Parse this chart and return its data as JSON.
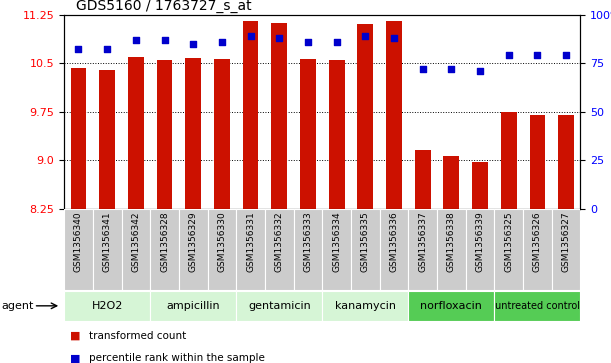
{
  "title": "GDS5160 / 1763727_s_at",
  "samples": [
    "GSM1356340",
    "GSM1356341",
    "GSM1356342",
    "GSM1356328",
    "GSM1356329",
    "GSM1356330",
    "GSM1356331",
    "GSM1356332",
    "GSM1356333",
    "GSM1356334",
    "GSM1356335",
    "GSM1356336",
    "GSM1356337",
    "GSM1356338",
    "GSM1356339",
    "GSM1356325",
    "GSM1356326",
    "GSM1356327"
  ],
  "transformed_count": [
    10.42,
    10.4,
    10.6,
    10.55,
    10.58,
    10.56,
    11.15,
    11.12,
    10.57,
    10.55,
    11.1,
    11.15,
    9.16,
    9.07,
    8.97,
    9.75,
    9.7,
    9.7
  ],
  "percentile_rank": [
    82,
    82,
    87,
    87,
    85,
    86,
    89,
    88,
    86,
    86,
    89,
    88,
    72,
    72,
    71,
    79,
    79,
    79
  ],
  "agents": [
    {
      "label": "H2O2",
      "start": 0,
      "end": 3,
      "color": "#d6f5d6"
    },
    {
      "label": "ampicillin",
      "start": 3,
      "end": 6,
      "color": "#d6f5d6"
    },
    {
      "label": "gentamicin",
      "start": 6,
      "end": 9,
      "color": "#d6f5d6"
    },
    {
      "label": "kanamycin",
      "start": 9,
      "end": 12,
      "color": "#d6f5d6"
    },
    {
      "label": "norfloxacin",
      "start": 12,
      "end": 15,
      "color": "#55cc55"
    },
    {
      "label": "untreated control",
      "start": 15,
      "end": 18,
      "color": "#55cc55"
    }
  ],
  "ylim_left": [
    8.25,
    11.25
  ],
  "ylim_right": [
    0,
    100
  ],
  "yticks_left": [
    8.25,
    9.0,
    9.75,
    10.5,
    11.25
  ],
  "yticks_right": [
    0,
    25,
    50,
    75,
    100
  ],
  "bar_color": "#cc1100",
  "dot_color": "#0000cc",
  "bar_bottom": 8.25,
  "legend_items": [
    {
      "label": "transformed count",
      "color": "#cc1100"
    },
    {
      "label": "percentile rank within the sample",
      "color": "#0000cc"
    }
  ],
  "fig_width": 6.11,
  "fig_height": 3.63,
  "dpi": 100
}
